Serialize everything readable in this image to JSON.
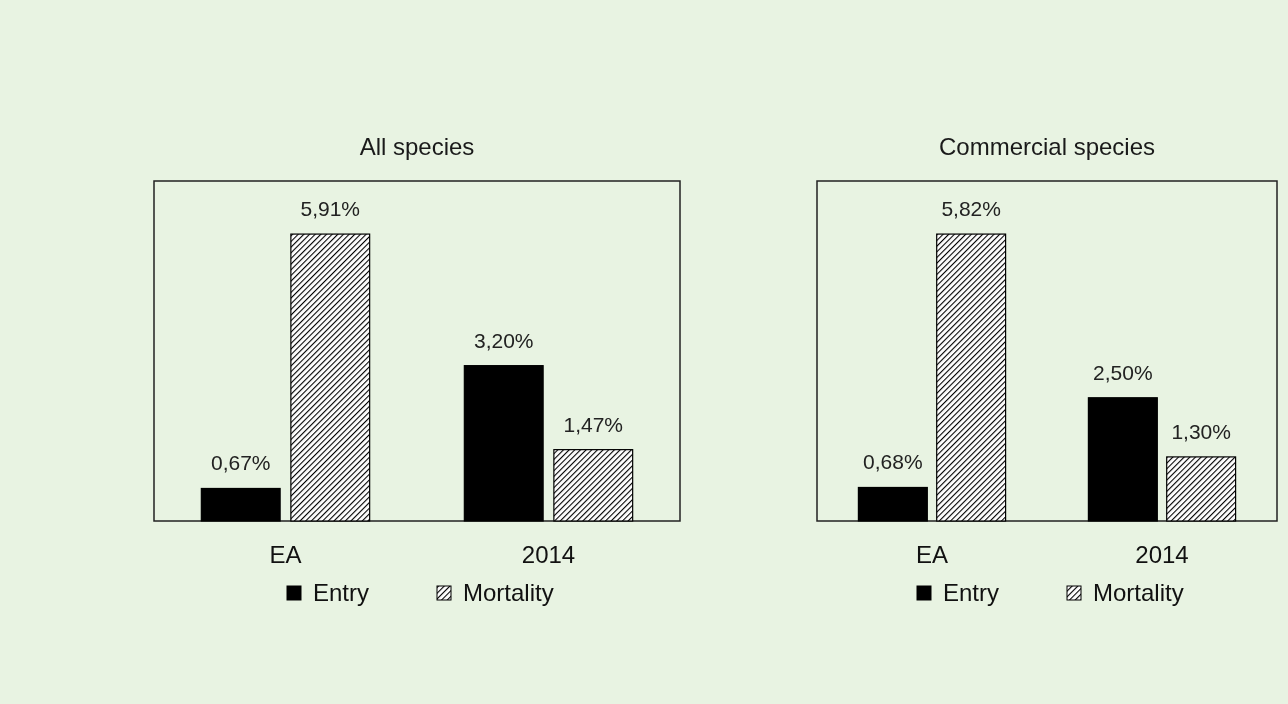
{
  "chart_data": [
    {
      "type": "bar",
      "title": "All species",
      "categories": [
        "EA",
        "2014"
      ],
      "legend": "bottom",
      "data_labels": true,
      "series": [
        {
          "name": "Entry",
          "color": "#000000",
          "values": [
            0.67,
            3.2
          ],
          "value_labels": [
            "0,67%",
            "3,20%"
          ]
        },
        {
          "name": "Mortality",
          "color": "#000000",
          "values": [
            5.91,
            1.47
          ],
          "value_labels": [
            "5,91%",
            "1,47%"
          ]
        }
      ]
    },
    {
      "type": "bar",
      "title": "Commercial species",
      "categories": [
        "EA",
        "2014"
      ],
      "legend": "bottom",
      "data_labels": true,
      "series": [
        {
          "name": "Entry",
          "color": "#000000",
          "values": [
            0.68,
            2.5
          ],
          "value_labels": [
            "0,68%",
            "2,50%"
          ]
        },
        {
          "name": "Mortality",
          "color": "#000000",
          "values": [
            5.82,
            1.3
          ],
          "value_labels": [
            "5,82%",
            "1,30%"
          ]
        }
      ]
    }
  ]
}
